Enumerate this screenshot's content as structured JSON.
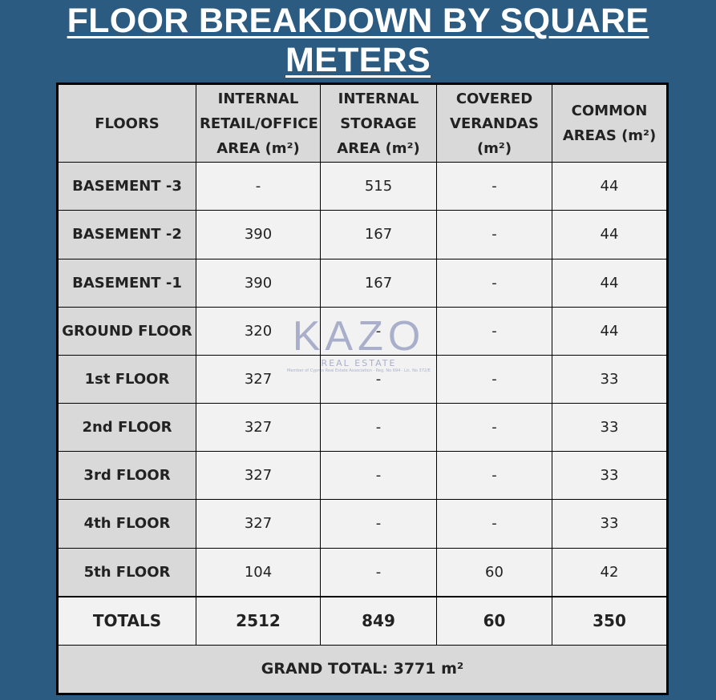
{
  "header": {
    "title": "FLOOR BREAKDOWN BY SQUARE METERS"
  },
  "table": {
    "columns": [
      "FLOORS",
      "INTERNAL RETAIL/OFFICE AREA (m²)",
      "INTERNAL STORAGE AREA (m²)",
      "COVERED VERANDAS (m²)",
      "COMMON AREAS (m²)"
    ],
    "rows": [
      [
        "BASEMENT -3",
        "-",
        515,
        "-",
        44
      ],
      [
        "BASEMENT -2",
        390,
        167,
        "-",
        44
      ],
      [
        "BASEMENT -1",
        390,
        167,
        "-",
        44
      ],
      [
        "GROUND FLOOR",
        320,
        "-",
        "-",
        44
      ],
      [
        "1st FLOOR",
        327,
        "-",
        "-",
        33
      ],
      [
        "2nd FLOOR",
        327,
        "-",
        "-",
        33
      ],
      [
        "3rd FLOOR",
        327,
        "-",
        "-",
        33
      ],
      [
        "4th FLOOR",
        327,
        "-",
        "-",
        33
      ],
      [
        "5th FLOOR",
        104,
        "-",
        60,
        42
      ]
    ],
    "totals": [
      "TOTALS",
      2512,
      849,
      60,
      350
    ],
    "grand_total": "GRAND TOTAL: 3771 m²"
  },
  "watermark": {
    "brand": "KAZO",
    "subtitle": "REAL ESTATE",
    "note": "Member of Cyprus Real Estate Association · Reg. No 694 · Lic. No 372/E"
  }
}
